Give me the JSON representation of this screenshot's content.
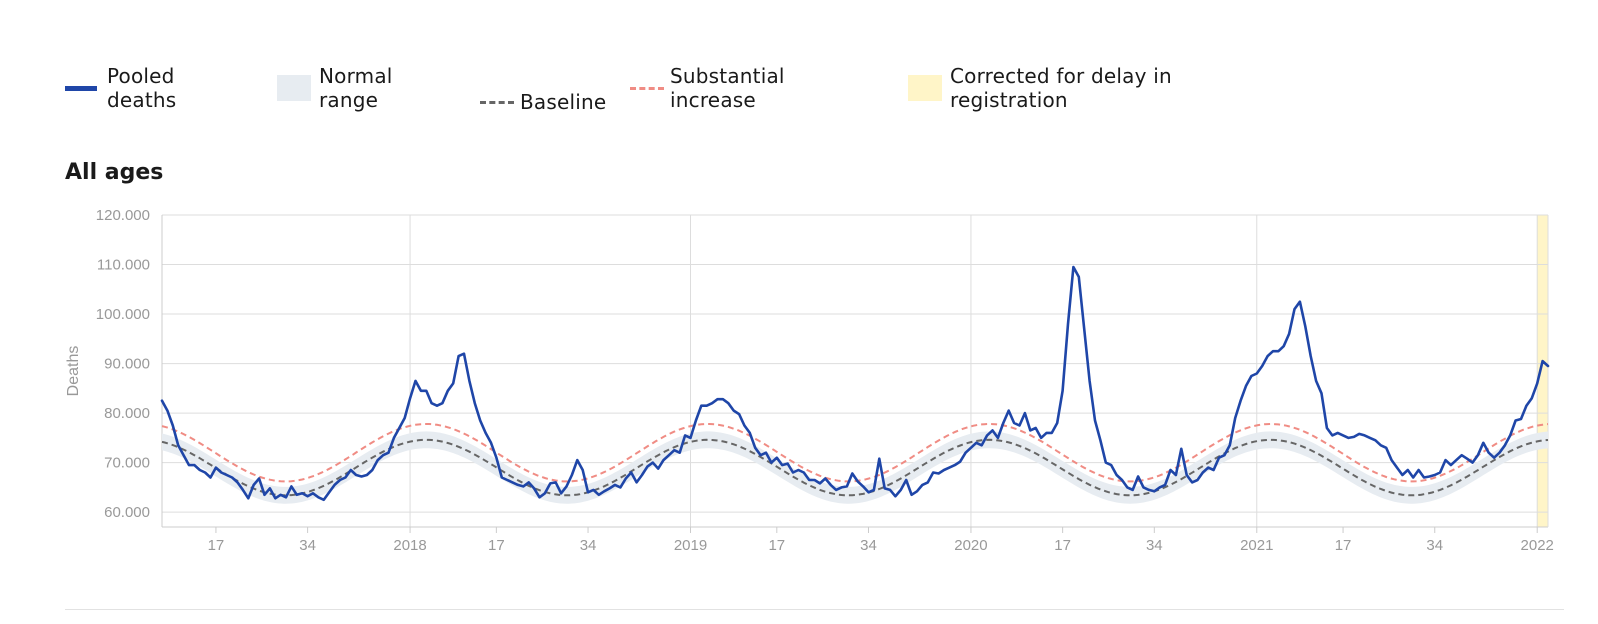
{
  "legend": {
    "pooled": "Pooled\ndeaths",
    "normal": "Normal\nrange",
    "baseline": "Baseline",
    "substantial": "Substantial\nincrease",
    "corrected": "Corrected for delay in\nregistration"
  },
  "section_title": "All ages",
  "colors": {
    "pooled": "#1f46a8",
    "normal_band": "#e7ecf1",
    "baseline": "#666666",
    "substantial": "#f08c84",
    "corrected": "#fff5c8",
    "grid": "#dddddd",
    "tick_text": "#999999"
  },
  "chart_data": {
    "type": "line",
    "title": "All ages",
    "ylabel": "Deaths",
    "xlabel": "",
    "ylim": [
      57000,
      120000
    ],
    "y_ticks": [
      60000,
      70000,
      80000,
      90000,
      100000,
      110000,
      120000
    ],
    "y_tick_labels": [
      "60.000",
      "70.000",
      "80.000",
      "90.000",
      "100.000",
      "110.000",
      "120.000"
    ],
    "x_ticks": [
      {
        "week": 17,
        "label": "17"
      },
      {
        "week": 34,
        "label": "34"
      },
      {
        "week": 53,
        "label": "2018"
      },
      {
        "week": 69,
        "label": "17"
      },
      {
        "week": 86,
        "label": "34"
      },
      {
        "week": 105,
        "label": "2019"
      },
      {
        "week": 121,
        "label": "17"
      },
      {
        "week": 138,
        "label": "34"
      },
      {
        "week": 157,
        "label": "2020"
      },
      {
        "week": 174,
        "label": "17"
      },
      {
        "week": 191,
        "label": "34"
      },
      {
        "week": 210,
        "label": "2021"
      },
      {
        "week": 226,
        "label": "17"
      },
      {
        "week": 243,
        "label": "34"
      },
      {
        "week": 262,
        "label": "2022"
      }
    ],
    "x_range": [
      7,
      264
    ],
    "grid": true,
    "corrected_range": [
      262,
      264
    ],
    "series": [
      {
        "name": "Pooled deaths",
        "points": [
          [
            7,
            82500
          ],
          [
            8,
            80500
          ],
          [
            9,
            77500
          ],
          [
            10,
            73500
          ],
          [
            11,
            71500
          ],
          [
            12,
            69500
          ],
          [
            13,
            69500
          ],
          [
            14,
            68500
          ],
          [
            15,
            68000
          ],
          [
            16,
            67000
          ],
          [
            17,
            69000
          ],
          [
            18,
            68000
          ],
          [
            19,
            67500
          ],
          [
            20,
            67000
          ],
          [
            21,
            66000
          ],
          [
            22,
            64500
          ],
          [
            23,
            62800
          ],
          [
            24,
            65500
          ],
          [
            25,
            66800
          ],
          [
            26,
            63500
          ],
          [
            27,
            64800
          ],
          [
            28,
            62800
          ],
          [
            29,
            63500
          ],
          [
            30,
            63000
          ],
          [
            31,
            65200
          ],
          [
            32,
            63500
          ],
          [
            33,
            63800
          ],
          [
            34,
            63200
          ],
          [
            35,
            63800
          ],
          [
            36,
            63000
          ],
          [
            37,
            62500
          ],
          [
            38,
            64000
          ],
          [
            39,
            65500
          ],
          [
            40,
            66500
          ],
          [
            41,
            67000
          ],
          [
            42,
            68500
          ],
          [
            43,
            67500
          ],
          [
            44,
            67200
          ],
          [
            45,
            67500
          ],
          [
            46,
            68500
          ],
          [
            47,
            70500
          ],
          [
            48,
            71500
          ],
          [
            49,
            72000
          ],
          [
            50,
            75000
          ],
          [
            51,
            77000
          ],
          [
            52,
            79000
          ],
          [
            53,
            83000
          ],
          [
            54,
            86500
          ],
          [
            55,
            84500
          ],
          [
            56,
            84500
          ],
          [
            57,
            82000
          ],
          [
            58,
            81500
          ],
          [
            59,
            82000
          ],
          [
            60,
            84500
          ],
          [
            61,
            86000
          ],
          [
            62,
            91500
          ],
          [
            63,
            92000
          ],
          [
            64,
            86500
          ],
          [
            65,
            82000
          ],
          [
            66,
            78500
          ],
          [
            67,
            76000
          ],
          [
            68,
            74000
          ],
          [
            69,
            71000
          ],
          [
            70,
            67000
          ],
          [
            71,
            66500
          ],
          [
            72,
            66000
          ],
          [
            73,
            65500
          ],
          [
            74,
            65200
          ],
          [
            75,
            66000
          ],
          [
            76,
            64800
          ],
          [
            77,
            63000
          ],
          [
            78,
            63800
          ],
          [
            79,
            65800
          ],
          [
            80,
            66000
          ],
          [
            81,
            63800
          ],
          [
            82,
            65200
          ],
          [
            83,
            67500
          ],
          [
            84,
            70500
          ],
          [
            85,
            68500
          ],
          [
            86,
            64000
          ],
          [
            87,
            64500
          ],
          [
            88,
            63500
          ],
          [
            89,
            64200
          ],
          [
            90,
            64800
          ],
          [
            91,
            65500
          ],
          [
            92,
            65000
          ],
          [
            93,
            66800
          ],
          [
            94,
            68000
          ],
          [
            95,
            66000
          ],
          [
            96,
            67500
          ],
          [
            97,
            69200
          ],
          [
            98,
            70000
          ],
          [
            99,
            68800
          ],
          [
            100,
            70500
          ],
          [
            101,
            71500
          ],
          [
            102,
            72500
          ],
          [
            103,
            72000
          ],
          [
            104,
            75500
          ],
          [
            105,
            75000
          ],
          [
            106,
            78500
          ],
          [
            107,
            81500
          ],
          [
            108,
            81500
          ],
          [
            109,
            82000
          ],
          [
            110,
            82800
          ],
          [
            111,
            82800
          ],
          [
            112,
            82000
          ],
          [
            113,
            80500
          ],
          [
            114,
            79800
          ],
          [
            115,
            77500
          ],
          [
            116,
            76000
          ],
          [
            117,
            73000
          ],
          [
            118,
            71500
          ],
          [
            119,
            72000
          ],
          [
            120,
            70000
          ],
          [
            121,
            71000
          ],
          [
            122,
            69500
          ],
          [
            123,
            69800
          ],
          [
            124,
            68000
          ],
          [
            125,
            68500
          ],
          [
            126,
            68000
          ],
          [
            127,
            66500
          ],
          [
            128,
            66500
          ],
          [
            129,
            65800
          ],
          [
            130,
            66800
          ],
          [
            131,
            65500
          ],
          [
            132,
            64500
          ],
          [
            133,
            65000
          ],
          [
            134,
            65200
          ],
          [
            135,
            67800
          ],
          [
            136,
            66200
          ],
          [
            137,
            65200
          ],
          [
            138,
            64000
          ],
          [
            139,
            64500
          ],
          [
            140,
            70800
          ],
          [
            141,
            64800
          ],
          [
            142,
            64500
          ],
          [
            143,
            63200
          ],
          [
            144,
            64500
          ],
          [
            145,
            66500
          ],
          [
            146,
            63500
          ],
          [
            147,
            64200
          ],
          [
            148,
            65500
          ],
          [
            149,
            66000
          ],
          [
            150,
            68000
          ],
          [
            151,
            67800
          ],
          [
            152,
            68500
          ],
          [
            153,
            69000
          ],
          [
            154,
            69500
          ],
          [
            155,
            70200
          ],
          [
            156,
            72000
          ],
          [
            157,
            73000
          ],
          [
            158,
            74000
          ],
          [
            159,
            73500
          ],
          [
            160,
            75500
          ],
          [
            161,
            76500
          ],
          [
            162,
            75000
          ],
          [
            163,
            78000
          ],
          [
            164,
            80500
          ],
          [
            165,
            78000
          ],
          [
            166,
            77500
          ],
          [
            167,
            80000
          ],
          [
            168,
            76500
          ],
          [
            169,
            77000
          ],
          [
            170,
            75000
          ],
          [
            171,
            76000
          ],
          [
            172,
            76000
          ],
          [
            173,
            78000
          ],
          [
            174,
            84500
          ],
          [
            175,
            98000
          ],
          [
            176,
            109500
          ],
          [
            177,
            107500
          ],
          [
            178,
            97000
          ],
          [
            179,
            86500
          ],
          [
            180,
            78500
          ],
          [
            181,
            74500
          ],
          [
            182,
            70000
          ],
          [
            183,
            69500
          ],
          [
            184,
            67500
          ],
          [
            185,
            66500
          ],
          [
            186,
            65000
          ],
          [
            187,
            64500
          ],
          [
            188,
            67200
          ],
          [
            189,
            65000
          ],
          [
            190,
            64500
          ],
          [
            191,
            64200
          ],
          [
            192,
            65000
          ],
          [
            193,
            65500
          ],
          [
            194,
            68500
          ],
          [
            195,
            67500
          ],
          [
            196,
            72800
          ],
          [
            197,
            67500
          ],
          [
            198,
            66000
          ],
          [
            199,
            66500
          ],
          [
            200,
            68000
          ],
          [
            201,
            69000
          ],
          [
            202,
            68500
          ],
          [
            203,
            71000
          ],
          [
            204,
            71500
          ],
          [
            205,
            73500
          ],
          [
            206,
            79000
          ],
          [
            207,
            82500
          ],
          [
            208,
            85500
          ],
          [
            209,
            87500
          ],
          [
            210,
            88000
          ],
          [
            211,
            89500
          ],
          [
            212,
            91500
          ],
          [
            213,
            92500
          ],
          [
            214,
            92500
          ],
          [
            215,
            93500
          ],
          [
            216,
            96000
          ],
          [
            217,
            101000
          ],
          [
            218,
            102500
          ],
          [
            219,
            97500
          ],
          [
            220,
            91500
          ],
          [
            221,
            86500
          ],
          [
            222,
            84000
          ],
          [
            223,
            77000
          ],
          [
            224,
            75500
          ],
          [
            225,
            76000
          ],
          [
            226,
            75500
          ],
          [
            227,
            75000
          ],
          [
            228,
            75200
          ],
          [
            229,
            75800
          ],
          [
            230,
            75500
          ],
          [
            231,
            75000
          ],
          [
            232,
            74500
          ],
          [
            233,
            73500
          ],
          [
            234,
            73000
          ],
          [
            235,
            70500
          ],
          [
            236,
            69000
          ],
          [
            237,
            67500
          ],
          [
            238,
            68500
          ],
          [
            239,
            67000
          ],
          [
            240,
            68500
          ],
          [
            241,
            67000
          ],
          [
            242,
            67200
          ],
          [
            243,
            67500
          ],
          [
            244,
            68000
          ],
          [
            245,
            70500
          ],
          [
            246,
            69500
          ],
          [
            247,
            70500
          ],
          [
            248,
            71500
          ],
          [
            249,
            70800
          ],
          [
            250,
            70000
          ],
          [
            251,
            71500
          ],
          [
            252,
            74000
          ],
          [
            253,
            72000
          ],
          [
            254,
            71000
          ],
          [
            255,
            72000
          ],
          [
            256,
            73500
          ],
          [
            257,
            75500
          ],
          [
            258,
            78500
          ],
          [
            259,
            78800
          ],
          [
            260,
            81500
          ],
          [
            261,
            83000
          ],
          [
            262,
            86000
          ],
          [
            263,
            90500
          ],
          [
            264,
            89500
          ]
        ]
      },
      {
        "name": "Baseline",
        "center": 69000,
        "amplitude": 5600,
        "period_weeks": 52.2,
        "peak_week": 56
      },
      {
        "name": "Substantial increase",
        "center": 72000,
        "amplitude": 5800,
        "period_weeks": 52.2,
        "peak_week": 56
      },
      {
        "name": "Normal range",
        "half_width": 1700
      }
    ]
  }
}
